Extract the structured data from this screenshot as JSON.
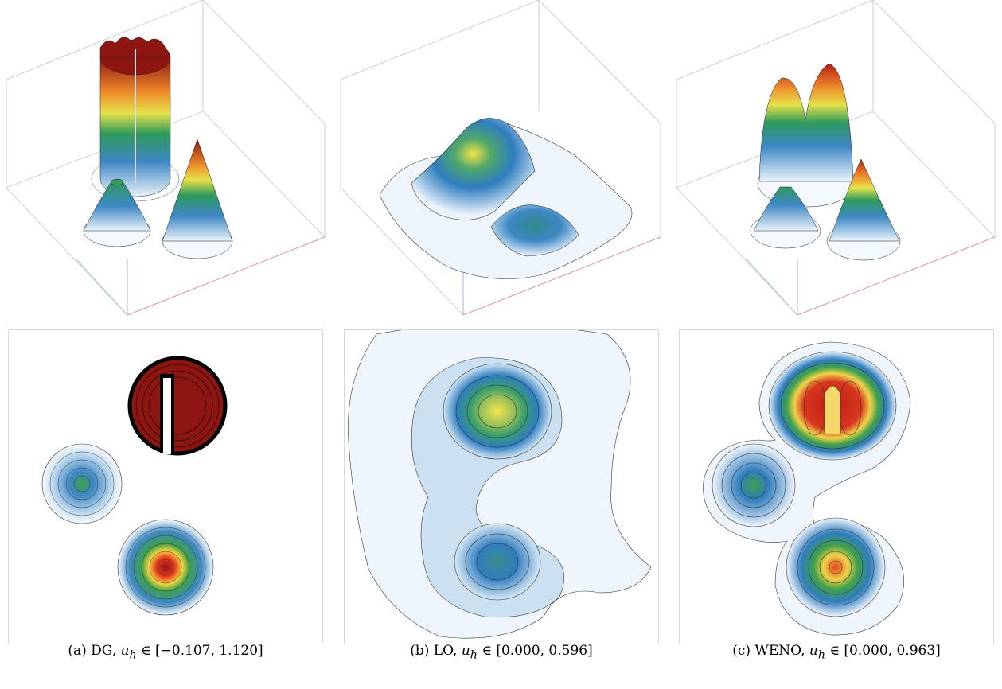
{
  "figure": {
    "panels": [
      {
        "id": "a",
        "method": "DG",
        "caption_prefix": "(a) DG, ",
        "var": "u",
        "sub": "h",
        "range_text": "∈ [−0.107, 1.120]",
        "colors": {
          "low": "#f4f9fd",
          "mid": "#2e7dbf",
          "high": "#8b1510"
        }
      },
      {
        "id": "b",
        "method": "LO",
        "caption_prefix": "(b) LO, ",
        "var": "u",
        "sub": "h",
        "range_text": "∈ [0.000, 0.596]",
        "colors": {
          "low": "#f4f9fd",
          "mid": "#2e7dbf",
          "high": "#f3e24a"
        }
      },
      {
        "id": "c",
        "method": "WENO",
        "caption_prefix": "(c) WENO, ",
        "var": "u",
        "sub": "h",
        "range_text": "∈ [0.000, 0.963]",
        "colors": {
          "low": "#f4f9fd",
          "mid": "#2e7dbf",
          "high": "#c8281b"
        }
      }
    ]
  }
}
